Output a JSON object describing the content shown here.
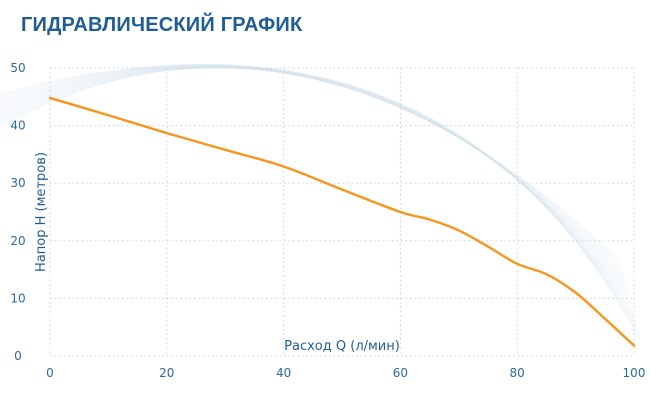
{
  "title": "ГИДРАВЛИЧЕСКИЙ ГРАФИК",
  "colors": {
    "title": "#1f5d96",
    "series": "#f7951d",
    "tick_label": "#2a6aa5",
    "grid": "#c9d3dd"
  },
  "chart_data": {
    "type": "line",
    "title": "ГИДРАВЛИЧЕСКИЙ ГРАФИК",
    "xlabel": "Расход Q (л/мин)",
    "ylabel": "Напор H (метров)",
    "xlim": [
      0,
      100
    ],
    "ylim": [
      0,
      50
    ],
    "x_ticks": [
      0,
      20,
      40,
      60,
      80,
      100
    ],
    "y_ticks": [
      0,
      10,
      20,
      30,
      40,
      50
    ],
    "grid": true,
    "series": [
      {
        "x": [
          0,
          10,
          20,
          30,
          40,
          50,
          60,
          65,
          70,
          75,
          80,
          85,
          90,
          95,
          100
        ],
        "y": [
          44.8,
          41.8,
          38.7,
          35.8,
          32.9,
          28.9,
          25.0,
          23.7,
          21.8,
          19.0,
          16.0,
          14.2,
          11.0,
          6.5,
          1.8
        ]
      }
    ]
  }
}
